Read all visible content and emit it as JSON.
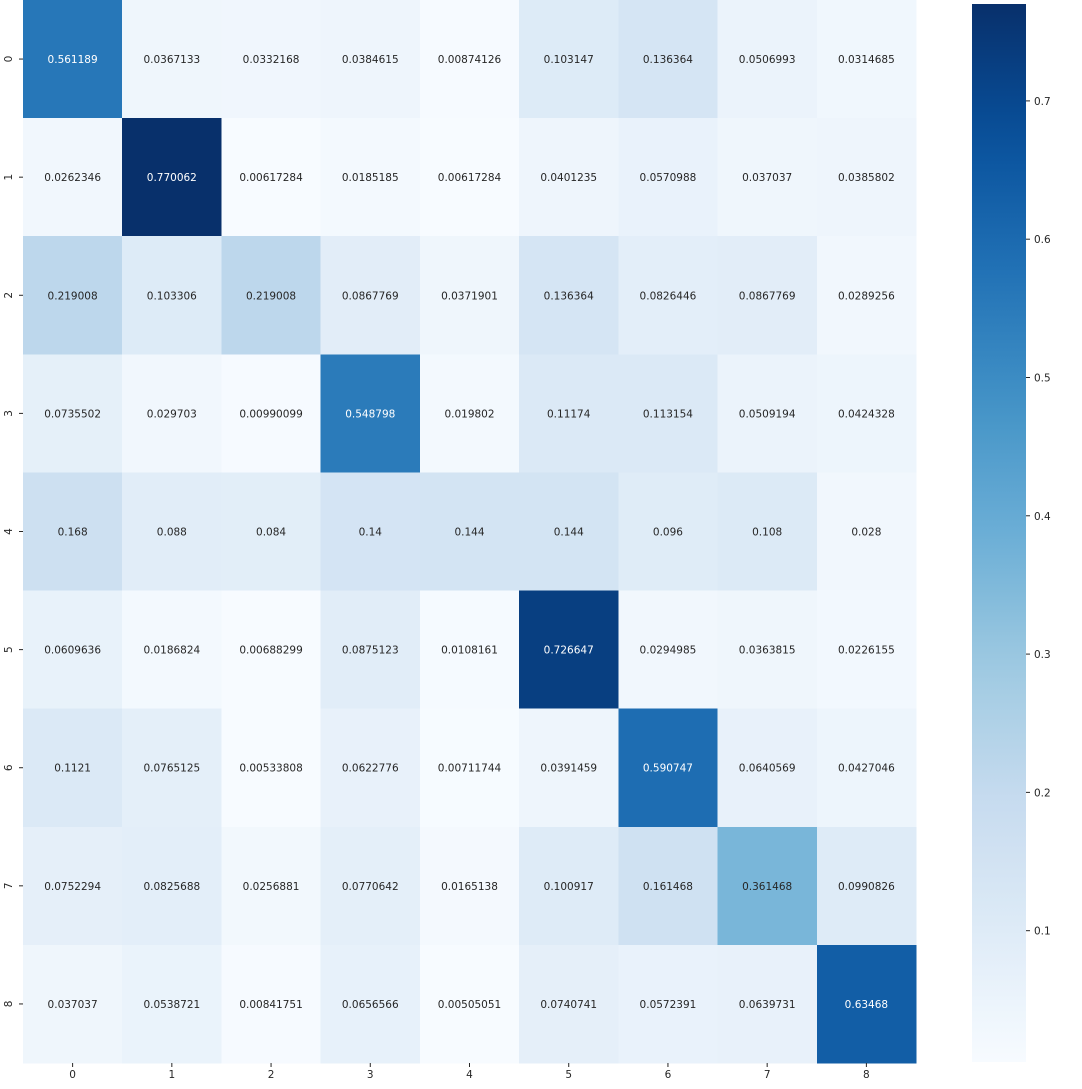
{
  "chart_data": {
    "type": "heatmap",
    "title": "",
    "xlabel": "",
    "ylabel": "",
    "x_categories": [
      "0",
      "1",
      "2",
      "3",
      "4",
      "5",
      "6",
      "7",
      "8"
    ],
    "y_categories": [
      "0",
      "1",
      "2",
      "3",
      "4",
      "5",
      "6",
      "7",
      "8"
    ],
    "values": [
      [
        "0.561189",
        "0.0367133",
        "0.0332168",
        "0.0384615",
        "0.00874126",
        "0.103147",
        "0.136364",
        "0.0506993",
        "0.0314685"
      ],
      [
        "0.0262346",
        "0.770062",
        "0.00617284",
        "0.0185185",
        "0.00617284",
        "0.0401235",
        "0.0570988",
        "0.037037",
        "0.0385802"
      ],
      [
        "0.219008",
        "0.103306",
        "0.219008",
        "0.0867769",
        "0.0371901",
        "0.136364",
        "0.0826446",
        "0.0867769",
        "0.0289256"
      ],
      [
        "0.0735502",
        "0.029703",
        "0.00990099",
        "0.548798",
        "0.019802",
        "0.11174",
        "0.113154",
        "0.0509194",
        "0.0424328"
      ],
      [
        "0.168",
        "0.088",
        "0.084",
        "0.14",
        "0.144",
        "0.144",
        "0.096",
        "0.108",
        "0.028"
      ],
      [
        "0.0609636",
        "0.0186824",
        "0.00688299",
        "0.0875123",
        "0.0108161",
        "0.726647",
        "0.0294985",
        "0.0363815",
        "0.0226155"
      ],
      [
        "0.1121",
        "0.0765125",
        "0.00533808",
        "0.0622776",
        "0.00711744",
        "0.0391459",
        "0.590747",
        "0.0640569",
        "0.0427046"
      ],
      [
        "0.0752294",
        "0.0825688",
        "0.0256881",
        "0.0770642",
        "0.0165138",
        "0.100917",
        "0.161468",
        "0.361468",
        "0.0990826"
      ],
      [
        "0.037037",
        "0.0538721",
        "0.00841751",
        "0.0656566",
        "0.00505051",
        "0.0740741",
        "0.0572391",
        "0.0639731",
        "0.63468"
      ]
    ],
    "colormap": "Blues",
    "vmin": 0.00505051,
    "vmax": 0.770062,
    "colorbar": {
      "ticks": [
        "0.1",
        "0.2",
        "0.3",
        "0.4",
        "0.5",
        "0.6",
        "0.7"
      ],
      "tick_values": [
        0.1,
        0.2,
        0.3,
        0.4,
        0.5,
        0.6,
        0.7
      ],
      "placement": "right"
    },
    "grid": false
  }
}
